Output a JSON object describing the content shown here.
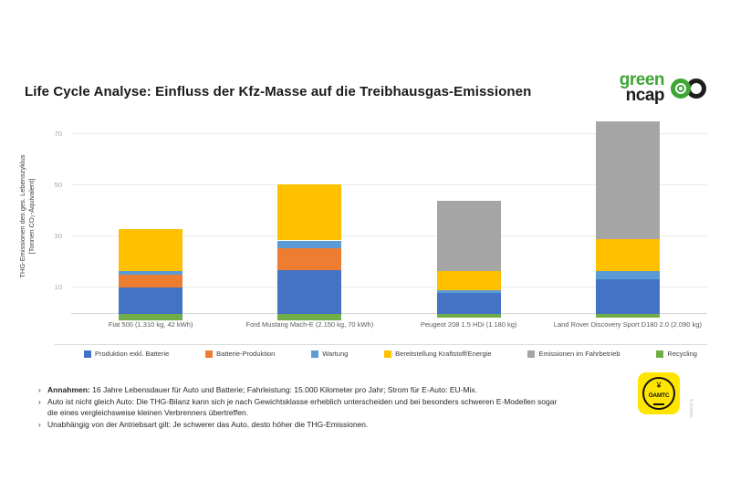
{
  "header": {
    "title": "Life Cycle Analyse: Einfluss der Kfz-Masse auf die Treibhausgas-Emissionen"
  },
  "logos": {
    "green_ncap": {
      "line1": "green",
      "line2": "ncap",
      "green_color": "#3FA535",
      "dark_color": "#1D1D1B"
    },
    "oeamtc": {
      "name": "ÖAMTC",
      "wings": "♜",
      "yellow_color": "#FFE500",
      "copyright": "© ÖAMTC"
    }
  },
  "chart_data": {
    "type": "bar",
    "stacked": true,
    "ylabel_line1": "THG-Emissionen des ges. Lebenszyklus",
    "ylabel_line2": "[Tonnen CO₂-Äquivalent]",
    "ylim": [
      -3,
      76
    ],
    "yticks": [
      10,
      30,
      50,
      70
    ],
    "grid": true,
    "legend_position": "bottom",
    "categories": [
      "Fiat 500 (1.310 kg, 42 kWh)",
      "Ford Mustang Mach-E (2.150 kg, 70 kWh)",
      "Peugeot 208 1.5 HDi (1.180 kg)",
      "Land Rover Discovery Sport D180 2.0 (2.090 kg)"
    ],
    "series": [
      {
        "name": "Produktion exkl. Batterie",
        "color": "#4472C4",
        "values": [
          10,
          17,
          8,
          13.5
        ]
      },
      {
        "name": "Batterie-Produktion",
        "color": "#ED7D31",
        "values": [
          5,
          8.5,
          0,
          0
        ]
      },
      {
        "name": "Wartung",
        "color": "#5B9BD5",
        "values": [
          1.5,
          3,
          1,
          3
        ]
      },
      {
        "name": "Bereitstellung Kraftstoff/Energie",
        "color": "#FFC000",
        "values": [
          16.5,
          22,
          7.5,
          12.5
        ]
      },
      {
        "name": "Emissionen im Fahrbetrieb",
        "color": "#A5A5A5",
        "values": [
          0,
          0,
          27.5,
          46
        ]
      },
      {
        "name": "Recycling",
        "color": "#70AD47",
        "values": [
          -2.5,
          -2.5,
          -1.5,
          -1.5
        ]
      }
    ],
    "totals_top_of_stack": [
      33,
      50.5,
      44,
      75
    ]
  },
  "notes": {
    "items": [
      {
        "bullet": "›",
        "bold": "Annahmen:",
        "text": "16 Jahre Lebensdauer für Auto und Batterie; Fahrleistung: 15.000 Kilometer pro Jahr; Strom für E-Auto: EU-Mix.",
        "text2": ""
      },
      {
        "bullet": "›",
        "bold": "",
        "text": "Auto ist nicht gleich Auto: Die THG-Bilanz kann sich je nach Gewichtsklasse erheblich unterscheiden und bei besonders schweren E-Modellen sogar",
        "text2": "die eines vergleichsweise kleinen Verbrenners übertreffen."
      },
      {
        "bullet": "›",
        "bold": "",
        "text": "Unabhängig von der Antriebsart gilt: Je schwerer das Auto, desto höher die THG-Emissionen.",
        "text2": ""
      }
    ]
  }
}
